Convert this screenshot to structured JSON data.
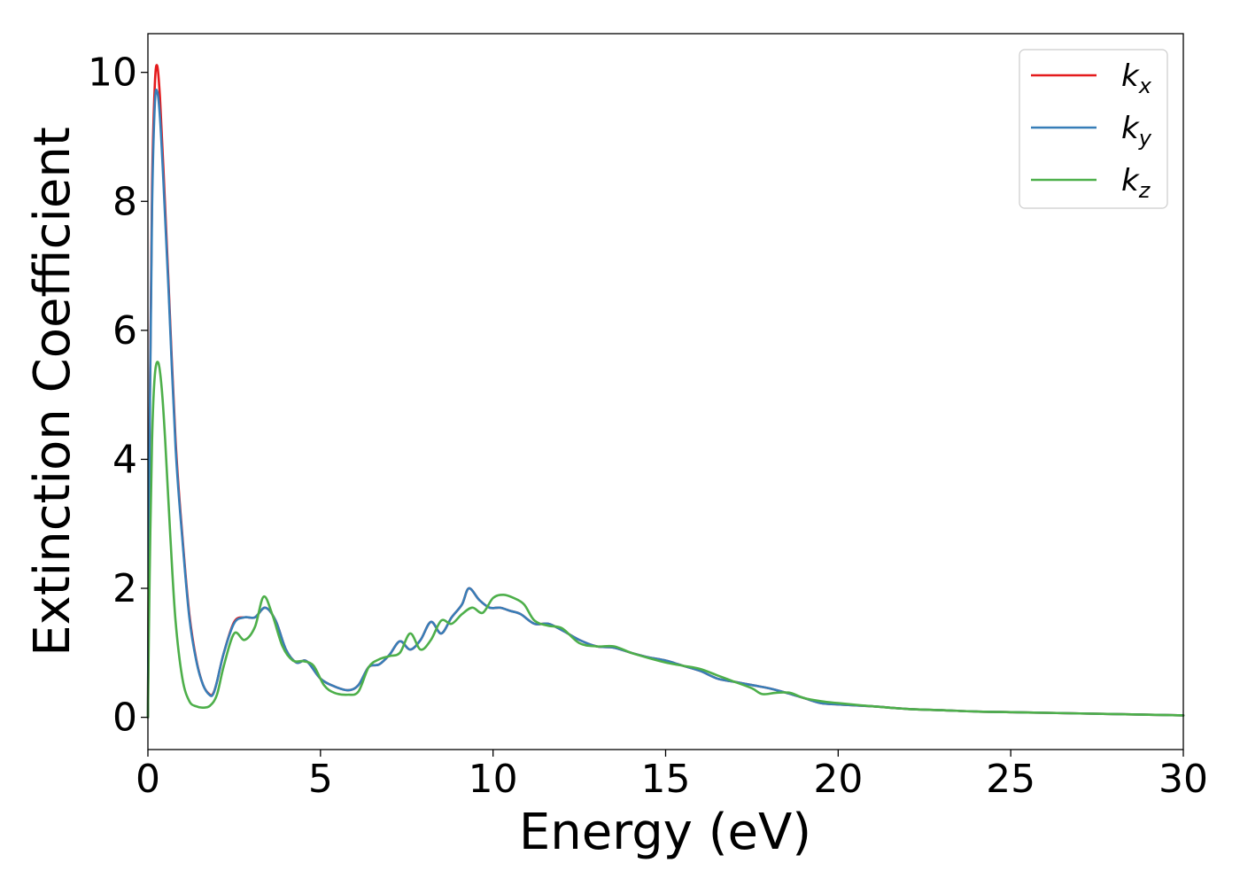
{
  "chart_data": {
    "type": "line",
    "xlabel": "Energy (eV)",
    "ylabel": "Extinction Coefficient",
    "xlim": [
      0,
      30
    ],
    "ylim": [
      -0.5,
      10.6
    ],
    "xticks": [
      0,
      5,
      10,
      15,
      20,
      25,
      30
    ],
    "yticks": [
      0,
      2,
      4,
      6,
      8,
      10
    ],
    "grid": false,
    "legend_position": "top-right",
    "series": [
      {
        "name": "k_x",
        "label_base": "k",
        "label_sub": "x",
        "color": "#e41a1c",
        "x": [
          0,
          0.05,
          0.12,
          0.2,
          0.27,
          0.35,
          0.45,
          0.6,
          0.8,
          1.0,
          1.2,
          1.4,
          1.6,
          1.8,
          1.9,
          2.0,
          2.2,
          2.5,
          2.8,
          3.1,
          3.4,
          3.7,
          4.0,
          4.3,
          4.6,
          5.0,
          5.4,
          5.8,
          6.1,
          6.4,
          6.7,
          7.0,
          7.3,
          7.6,
          7.9,
          8.2,
          8.5,
          8.8,
          9.1,
          9.3,
          9.6,
          9.9,
          10.2,
          10.5,
          10.8,
          11.2,
          11.6,
          12.0,
          12.5,
          13.0,
          13.5,
          14.0,
          14.5,
          15.0,
          15.5,
          16.0,
          16.5,
          17.0,
          17.5,
          18.0,
          18.5,
          19.0,
          19.5,
          20.0,
          21.0,
          22.0,
          23.0,
          24.0,
          25.0,
          26.0,
          27.0,
          28.0,
          29.0,
          30.0
        ],
        "values": [
          0.0,
          4.5,
          8.2,
          9.8,
          10.1,
          9.6,
          8.5,
          6.7,
          4.3,
          2.8,
          1.6,
          0.9,
          0.5,
          0.35,
          0.38,
          0.55,
          1.0,
          1.48,
          1.55,
          1.55,
          1.7,
          1.5,
          1.05,
          0.85,
          0.87,
          0.6,
          0.48,
          0.42,
          0.5,
          0.78,
          0.82,
          0.97,
          1.18,
          1.05,
          1.2,
          1.48,
          1.3,
          1.55,
          1.75,
          2.0,
          1.82,
          1.7,
          1.7,
          1.65,
          1.6,
          1.45,
          1.45,
          1.35,
          1.2,
          1.1,
          1.08,
          1.0,
          0.93,
          0.88,
          0.8,
          0.72,
          0.6,
          0.55,
          0.5,
          0.45,
          0.38,
          0.3,
          0.22,
          0.2,
          0.17,
          0.13,
          0.11,
          0.09,
          0.08,
          0.07,
          0.06,
          0.05,
          0.04,
          0.03
        ]
      },
      {
        "name": "k_y",
        "label_base": "k",
        "label_sub": "y",
        "color": "#377eb8",
        "x": [
          0,
          0.05,
          0.12,
          0.2,
          0.27,
          0.35,
          0.45,
          0.6,
          0.8,
          1.0,
          1.2,
          1.4,
          1.6,
          1.8,
          1.9,
          2.0,
          2.2,
          2.5,
          2.8,
          3.1,
          3.4,
          3.7,
          4.0,
          4.3,
          4.6,
          5.0,
          5.4,
          5.8,
          6.1,
          6.4,
          6.7,
          7.0,
          7.3,
          7.6,
          7.9,
          8.2,
          8.5,
          8.8,
          9.1,
          9.3,
          9.6,
          9.9,
          10.2,
          10.5,
          10.8,
          11.2,
          11.6,
          12.0,
          12.5,
          13.0,
          13.5,
          14.0,
          14.5,
          15.0,
          15.5,
          16.0,
          16.5,
          17.0,
          17.5,
          18.0,
          18.5,
          19.0,
          19.5,
          20.0,
          21.0,
          22.0,
          23.0,
          24.0,
          25.0,
          26.0,
          27.0,
          28.0,
          29.0,
          30.0
        ],
        "values": [
          0.0,
          4.3,
          7.9,
          9.5,
          9.7,
          9.3,
          8.3,
          6.6,
          4.2,
          2.75,
          1.55,
          0.88,
          0.5,
          0.34,
          0.37,
          0.55,
          1.0,
          1.46,
          1.55,
          1.55,
          1.7,
          1.5,
          1.05,
          0.85,
          0.87,
          0.6,
          0.48,
          0.42,
          0.5,
          0.78,
          0.82,
          0.97,
          1.18,
          1.05,
          1.2,
          1.48,
          1.3,
          1.55,
          1.75,
          2.0,
          1.82,
          1.7,
          1.7,
          1.65,
          1.6,
          1.45,
          1.45,
          1.35,
          1.2,
          1.1,
          1.08,
          1.0,
          0.93,
          0.88,
          0.8,
          0.72,
          0.6,
          0.55,
          0.5,
          0.45,
          0.38,
          0.3,
          0.22,
          0.2,
          0.17,
          0.13,
          0.11,
          0.09,
          0.08,
          0.07,
          0.06,
          0.05,
          0.04,
          0.03
        ]
      },
      {
        "name": "k_z",
        "label_base": "k",
        "label_sub": "z",
        "color": "#4daf4a",
        "x": [
          0,
          0.05,
          0.12,
          0.2,
          0.3,
          0.4,
          0.5,
          0.65,
          0.8,
          1.0,
          1.2,
          1.4,
          1.6,
          1.8,
          2.0,
          2.2,
          2.5,
          2.8,
          3.1,
          3.35,
          3.6,
          3.9,
          4.2,
          4.5,
          4.8,
          5.1,
          5.4,
          5.8,
          6.1,
          6.4,
          6.7,
          7.0,
          7.3,
          7.6,
          7.9,
          8.2,
          8.5,
          8.8,
          9.1,
          9.4,
          9.7,
          10.0,
          10.3,
          10.6,
          10.9,
          11.2,
          11.6,
          12.0,
          12.5,
          13.0,
          13.5,
          14.0,
          14.5,
          15.0,
          15.5,
          16.0,
          16.5,
          17.0,
          17.5,
          17.8,
          18.2,
          18.6,
          19.0,
          19.5,
          20.0,
          21.0,
          22.0,
          23.0,
          24.0,
          25.0,
          26.0,
          27.0,
          28.0,
          29.0,
          30.0
        ],
        "values": [
          0.0,
          2.2,
          4.3,
          5.3,
          5.5,
          5.1,
          4.3,
          2.8,
          1.5,
          0.6,
          0.25,
          0.17,
          0.15,
          0.18,
          0.35,
          0.8,
          1.3,
          1.2,
          1.4,
          1.87,
          1.6,
          1.1,
          0.88,
          0.87,
          0.8,
          0.5,
          0.38,
          0.35,
          0.4,
          0.78,
          0.9,
          0.95,
          1.0,
          1.3,
          1.05,
          1.2,
          1.5,
          1.45,
          1.6,
          1.7,
          1.62,
          1.85,
          1.9,
          1.85,
          1.75,
          1.5,
          1.42,
          1.38,
          1.15,
          1.1,
          1.1,
          1.0,
          0.92,
          0.85,
          0.8,
          0.75,
          0.65,
          0.55,
          0.45,
          0.36,
          0.38,
          0.38,
          0.3,
          0.25,
          0.22,
          0.17,
          0.13,
          0.11,
          0.09,
          0.08,
          0.07,
          0.06,
          0.05,
          0.04,
          0.03
        ]
      }
    ]
  }
}
